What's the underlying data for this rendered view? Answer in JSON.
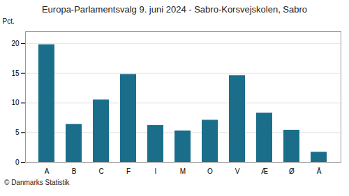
{
  "chart_data": {
    "type": "bar",
    "title": "Europa-Parlamentsvalg 9. juni 2024 - Sabro-Korsvejskolen, Sabro",
    "ylabel": "Pct.",
    "caption": "© Danmarks Statistik",
    "categories": [
      "A",
      "B",
      "C",
      "F",
      "I",
      "M",
      "O",
      "V",
      "Æ",
      "Ø",
      "Å"
    ],
    "values": [
      19.8,
      6.4,
      10.5,
      14.8,
      6.2,
      5.3,
      7.1,
      14.6,
      8.3,
      5.4,
      1.7
    ],
    "color": "#1a6e8a",
    "ylim": [
      0,
      22
    ],
    "yticks": [
      0,
      5,
      10,
      15,
      20
    ],
    "grid": true
  }
}
